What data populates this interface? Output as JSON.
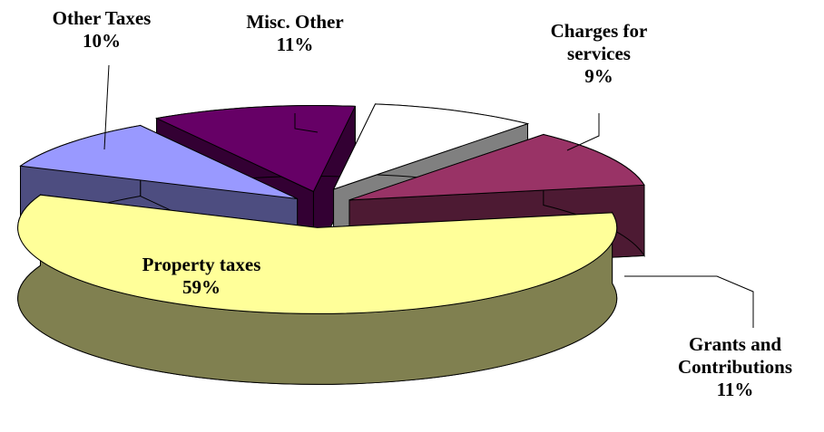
{
  "chart_data": {
    "type": "pie3d",
    "categories": [
      "Property taxes",
      "Other Taxes",
      "Misc. Other",
      "Charges for services",
      "Grants and Contributions"
    ],
    "values": [
      59,
      10,
      11,
      9,
      11
    ],
    "value_labels": [
      "59%",
      "10%",
      "11%",
      "9%",
      "11%"
    ],
    "colors": [
      "#ffff99",
      "#9999ff",
      "#660066",
      "#ffffff",
      "#993366"
    ],
    "side_colors": [
      "#808050",
      "#4d4d80",
      "#330033",
      "#808080",
      "#4d1a33"
    ]
  }
}
